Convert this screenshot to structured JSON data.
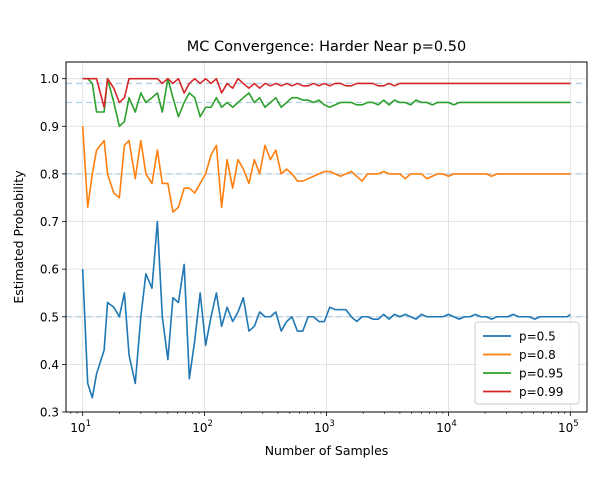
{
  "chart_data": {
    "type": "line",
    "title": "MC Convergence: Harder Near p=0.50",
    "xlabel": "Number of Samples",
    "ylabel": "Estimated Probability",
    "xscale": "log",
    "xlim": [
      7.3,
      137000
    ],
    "ylim": [
      0.3,
      1.035
    ],
    "x_ticks": [
      {
        "value": 10,
        "label_base": "10",
        "label_exp": "1"
      },
      {
        "value": 100,
        "label_base": "10",
        "label_exp": "2"
      },
      {
        "value": 1000,
        "label_base": "10",
        "label_exp": "3"
      },
      {
        "value": 10000,
        "label_base": "10",
        "label_exp": "4"
      },
      {
        "value": 100000,
        "label_base": "10",
        "label_exp": "5"
      }
    ],
    "y_ticks": [
      {
        "value": 0.3,
        "label": "0.3"
      },
      {
        "value": 0.4,
        "label": "0.4"
      },
      {
        "value": 0.5,
        "label": "0.5"
      },
      {
        "value": 0.6,
        "label": "0.6"
      },
      {
        "value": 0.7,
        "label": "0.7"
      },
      {
        "value": 0.8,
        "label": "0.8"
      },
      {
        "value": 0.9,
        "label": "0.9"
      },
      {
        "value": 1.0,
        "label": "1.0"
      }
    ],
    "grid": true,
    "legend_position": "lower-right",
    "reference_lines": [
      0.5,
      0.8,
      0.95,
      0.99
    ],
    "reference_line_color": "#a6c8e0",
    "x": [
      10,
      11,
      12,
      13,
      15,
      16,
      18,
      20,
      22,
      24,
      27,
      30,
      33,
      37,
      41,
      45,
      50,
      55,
      61,
      68,
      75,
      83,
      92,
      102,
      113,
      125,
      138,
      153,
      170,
      188,
      208,
      231,
      256,
      283,
      313,
      347,
      384,
      425,
      471,
      521,
      577,
      639,
      707,
      783,
      867,
      960,
      1063,
      1177,
      1303,
      1443,
      1598,
      1769,
      1959,
      2169,
      2402,
      2659,
      2944,
      3260,
      3610,
      3997,
      4426,
      4900,
      5426,
      6008,
      6652,
      7366,
      8156,
      9030,
      10000,
      11073,
      12260,
      13576,
      15032,
      16644,
      18430,
      20407,
      22596,
      25019,
      27703,
      30675,
      33965,
      37608,
      41642,
      46109,
      51055,
      56531,
      62595,
      69309,
      76744,
      84976,
      94091,
      100000
    ],
    "series": [
      {
        "name": "p=0.5",
        "color": "#1f77b4",
        "values": [
          0.6,
          0.36,
          0.33,
          0.38,
          0.43,
          0.53,
          0.52,
          0.5,
          0.55,
          0.42,
          0.36,
          0.5,
          0.59,
          0.56,
          0.7,
          0.5,
          0.41,
          0.54,
          0.53,
          0.61,
          0.37,
          0.45,
          0.55,
          0.44,
          0.5,
          0.55,
          0.48,
          0.52,
          0.49,
          0.51,
          0.54,
          0.47,
          0.48,
          0.51,
          0.5,
          0.5,
          0.51,
          0.47,
          0.49,
          0.5,
          0.47,
          0.47,
          0.5,
          0.5,
          0.49,
          0.49,
          0.52,
          0.515,
          0.515,
          0.515,
          0.5,
          0.49,
          0.5,
          0.5,
          0.495,
          0.495,
          0.505,
          0.495,
          0.505,
          0.5,
          0.505,
          0.5,
          0.495,
          0.505,
          0.5,
          0.5,
          0.5,
          0.5,
          0.505,
          0.5,
          0.495,
          0.5,
          0.5,
          0.505,
          0.5,
          0.5,
          0.495,
          0.5,
          0.5,
          0.5,
          0.505,
          0.5,
          0.5,
          0.5,
          0.495,
          0.5,
          0.5,
          0.5,
          0.5,
          0.5,
          0.5,
          0.505
        ]
      },
      {
        "name": "p=0.8",
        "color": "#ff7f0e",
        "values": [
          0.9,
          0.73,
          0.8,
          0.85,
          0.87,
          0.8,
          0.76,
          0.75,
          0.86,
          0.87,
          0.79,
          0.87,
          0.8,
          0.78,
          0.85,
          0.78,
          0.78,
          0.72,
          0.73,
          0.77,
          0.77,
          0.76,
          0.78,
          0.8,
          0.84,
          0.86,
          0.73,
          0.83,
          0.77,
          0.83,
          0.81,
          0.78,
          0.83,
          0.8,
          0.86,
          0.83,
          0.85,
          0.8,
          0.81,
          0.8,
          0.785,
          0.785,
          0.79,
          0.795,
          0.8,
          0.805,
          0.805,
          0.8,
          0.795,
          0.8,
          0.805,
          0.795,
          0.785,
          0.8,
          0.8,
          0.8,
          0.805,
          0.8,
          0.8,
          0.8,
          0.79,
          0.8,
          0.8,
          0.8,
          0.79,
          0.795,
          0.8,
          0.8,
          0.795,
          0.8,
          0.8,
          0.8,
          0.8,
          0.8,
          0.8,
          0.8,
          0.795,
          0.8,
          0.8,
          0.8,
          0.8,
          0.8,
          0.8,
          0.8,
          0.8,
          0.8,
          0.8,
          0.8,
          0.8,
          0.8,
          0.8,
          0.8
        ]
      },
      {
        "name": "p=0.95",
        "color": "#2ca02c",
        "values": [
          1.0,
          1.0,
          0.99,
          0.93,
          0.93,
          1.0,
          0.95,
          0.9,
          0.91,
          0.96,
          0.93,
          0.97,
          0.95,
          0.96,
          0.97,
          0.93,
          1.0,
          0.96,
          0.92,
          0.95,
          0.97,
          0.96,
          0.92,
          0.94,
          0.94,
          0.96,
          0.94,
          0.95,
          0.94,
          0.95,
          0.96,
          0.97,
          0.95,
          0.96,
          0.94,
          0.95,
          0.96,
          0.94,
          0.95,
          0.96,
          0.96,
          0.955,
          0.955,
          0.95,
          0.955,
          0.945,
          0.94,
          0.945,
          0.95,
          0.95,
          0.95,
          0.945,
          0.945,
          0.95,
          0.95,
          0.945,
          0.955,
          0.945,
          0.955,
          0.95,
          0.95,
          0.945,
          0.955,
          0.95,
          0.95,
          0.945,
          0.95,
          0.95,
          0.95,
          0.945,
          0.95,
          0.95,
          0.95,
          0.95,
          0.95,
          0.95,
          0.95,
          0.95,
          0.95,
          0.95,
          0.95,
          0.95,
          0.95,
          0.95,
          0.95,
          0.95,
          0.95,
          0.95,
          0.95,
          0.95,
          0.95,
          0.95
        ]
      },
      {
        "name": "p=0.99",
        "color": "#d62728",
        "values": [
          1.0,
          1.0,
          1.0,
          1.0,
          0.94,
          1.0,
          0.98,
          0.95,
          0.96,
          1.0,
          1.0,
          1.0,
          1.0,
          1.0,
          1.0,
          0.99,
          1.0,
          0.99,
          1.0,
          0.97,
          0.99,
          1.0,
          0.99,
          1.0,
          0.99,
          1.0,
          0.97,
          0.99,
          0.98,
          1.0,
          0.99,
          0.98,
          0.99,
          0.98,
          0.99,
          0.985,
          0.99,
          0.985,
          0.99,
          0.985,
          0.99,
          0.985,
          0.985,
          0.99,
          0.985,
          0.99,
          0.985,
          0.99,
          0.99,
          0.985,
          0.985,
          0.99,
          0.99,
          0.99,
          0.99,
          0.985,
          0.985,
          0.99,
          0.985,
          0.99,
          0.99,
          0.99,
          0.99,
          0.99,
          0.99,
          0.99,
          0.99,
          0.99,
          0.99,
          0.99,
          0.99,
          0.99,
          0.99,
          0.99,
          0.99,
          0.99,
          0.99,
          0.99,
          0.99,
          0.99,
          0.99,
          0.99,
          0.99,
          0.99,
          0.99,
          0.99,
          0.99,
          0.99,
          0.99,
          0.99,
          0.99,
          0.99
        ]
      }
    ]
  }
}
